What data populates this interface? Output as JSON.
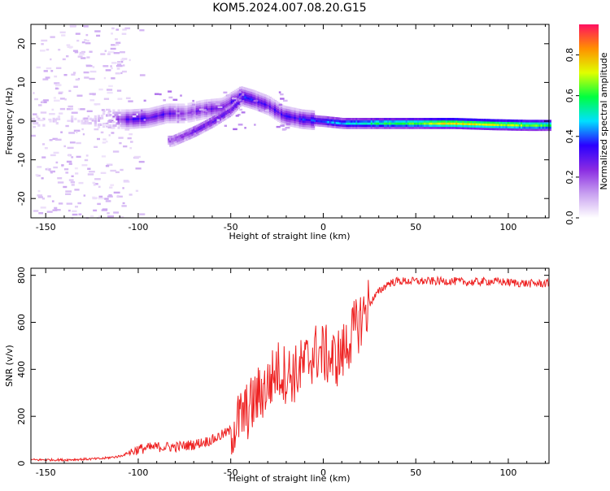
{
  "title": "KOM5.2024.007.08.20.G15",
  "chart_data": [
    {
      "type": "heatmap",
      "xlabel": "Height of straight line (km)",
      "ylabel": "Frequency (Hz)",
      "xlim": [
        -158,
        122
      ],
      "ylim": [
        -25,
        25
      ],
      "x_ticks": [
        -150,
        -100,
        -50,
        0,
        50,
        100
      ],
      "y_ticks": [
        -20,
        -10,
        0,
        10,
        20
      ],
      "colorbar": {
        "label": "Normalized spectral amplitude",
        "range": [
          0,
          0.95
        ],
        "ticks": [
          0.0,
          0.2,
          0.4,
          0.6,
          0.8
        ],
        "colors": [
          "#ffffff",
          "#c8a0f0",
          "#8a2be2",
          "#2a00ff",
          "#00e0ff",
          "#00ff40",
          "#e0ff00",
          "#ff9000",
          "#ff1060"
        ]
      },
      "ridge": [
        {
          "x": -155,
          "f": 0.0,
          "a": 0.04
        },
        {
          "x": -125,
          "f": 0.0,
          "a": 0.05
        },
        {
          "x": -115,
          "f": 0.5,
          "a": 0.18
        },
        {
          "x": -105,
          "f": 0.5,
          "a": 0.3
        },
        {
          "x": -95,
          "f": 0.8,
          "a": 0.32
        },
        {
          "x": -85,
          "f": 2.0,
          "a": 0.3
        },
        {
          "x": -75,
          "f": 2.0,
          "a": 0.2
        },
        {
          "x": -65,
          "f": 3.0,
          "a": 0.25
        },
        {
          "x": -55,
          "f": 3.5,
          "a": 0.25
        },
        {
          "x": -45,
          "f": 6.5,
          "a": 0.35
        },
        {
          "x": -38,
          "f": 5.5,
          "a": 0.32
        },
        {
          "x": -30,
          "f": 4.0,
          "a": 0.3
        },
        {
          "x": -22,
          "f": 1.5,
          "a": 0.3
        },
        {
          "x": -12,
          "f": 0.5,
          "a": 0.35
        },
        {
          "x": 0,
          "f": 0.0,
          "a": 0.45
        },
        {
          "x": 10,
          "f": -0.5,
          "a": 0.5
        },
        {
          "x": 30,
          "f": -0.5,
          "a": 0.6
        },
        {
          "x": 50,
          "f": -0.5,
          "a": 0.65
        },
        {
          "x": 70,
          "f": -0.5,
          "a": 0.8
        },
        {
          "x": 90,
          "f": -0.8,
          "a": 0.75
        },
        {
          "x": 110,
          "f": -1.0,
          "a": 0.7
        },
        {
          "x": 122,
          "f": -1.0,
          "a": 0.65
        }
      ],
      "secondary_ridge": [
        {
          "x": -82,
          "f": -5.0,
          "a": 0.2
        },
        {
          "x": -70,
          "f": -2.5,
          "a": 0.28
        },
        {
          "x": -60,
          "f": 0.0,
          "a": 0.3
        },
        {
          "x": -50,
          "f": 3.0,
          "a": 0.3
        },
        {
          "x": -44,
          "f": 6.0,
          "a": 0.35
        }
      ]
    },
    {
      "type": "line",
      "xlabel": "Height of straight line (km)",
      "ylabel": "SNR (v/v)",
      "xlim": [
        -158,
        122
      ],
      "ylim": [
        0,
        830
      ],
      "x_ticks": [
        -150,
        -100,
        -50,
        0,
        50,
        100
      ],
      "y_ticks": [
        0,
        200,
        400,
        600,
        800
      ],
      "color": "#ee2222",
      "series": [
        {
          "x": [
            -158,
            -140,
            -120,
            -110,
            -100,
            -90,
            -80,
            -70,
            -60,
            -50,
            -45,
            -40,
            -35,
            -30,
            -25,
            -20,
            -15,
            -10,
            -5,
            0,
            5,
            10,
            15,
            20,
            25,
            30,
            35,
            40,
            50,
            60,
            70,
            80,
            90,
            100,
            110,
            122
          ],
          "values": [
            15,
            15,
            20,
            30,
            60,
            70,
            70,
            80,
            100,
            140,
            190,
            230,
            290,
            330,
            400,
            380,
            380,
            420,
            470,
            470,
            440,
            460,
            540,
            610,
            680,
            730,
            765,
            775,
            775,
            775,
            775,
            770,
            775,
            770,
            765,
            765
          ]
        }
      ]
    }
  ]
}
